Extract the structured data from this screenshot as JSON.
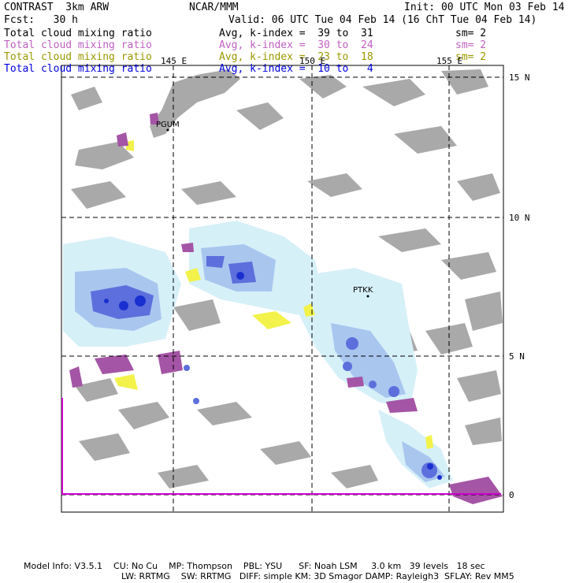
{
  "header": {
    "model": "CONTRAST  3km ARW",
    "org": "NCAR/MMM",
    "init": "Init: 00 UTC Mon 03 Feb 14",
    "fcst": "Fcst:   30 h",
    "valid": "Valid: 06 UTC Tue 04 Feb 14 (16 ChT Tue 04 Feb 14)"
  },
  "legend": [
    {
      "field": "Total cloud mixing ratio",
      "avg": "Avg, k-index =  39 to  31",
      "sm": "sm= 2",
      "color": "#000000"
    },
    {
      "field": "Total cloud mixing ratio",
      "avg": "Avg, k-index =  30 to  24",
      "sm": "sm= 2",
      "color": "#c060c0"
    },
    {
      "field": "Total cloud mixing ratio",
      "avg": "Avg, k-index =  23 to  18",
      "sm": "sm= 2",
      "color": "#999900"
    },
    {
      "field": "Total cloud mixing ratio",
      "avg": "Avg, k-index =  10 to   4",
      "sm": "",
      "color": "#0000dd"
    }
  ],
  "map": {
    "lon_labels": [
      "145 E",
      "150 E",
      "155 E"
    ],
    "lat_labels": [
      "15 N",
      "10 N",
      "5 N",
      "0"
    ],
    "stations": [
      "PGUM",
      "PTKK"
    ],
    "colors": {
      "land": "#a9a9a9",
      "cloud_light": "#d6f0f8",
      "cloud_mid": "#a9c6ef",
      "cloud_dark": "#5c6fdc",
      "cloud_core": "#1a2fd0",
      "yellow": "#f2f24a",
      "purple": "#a555a5",
      "boundary": "#cc00cc"
    }
  },
  "footer": {
    "line1": "Model Info: V3.5.1    CU: No Cu    MP: Thompson    PBL: YSU      SF: Noah LSM     3.0 km   39 levels   18 sec",
    "line2": "LW: RRTMG    SW: RRTMG   DIFF: simple KM: 3D Smagor DAMP: Rayleigh3  SFLAY: Rev MM5"
  }
}
